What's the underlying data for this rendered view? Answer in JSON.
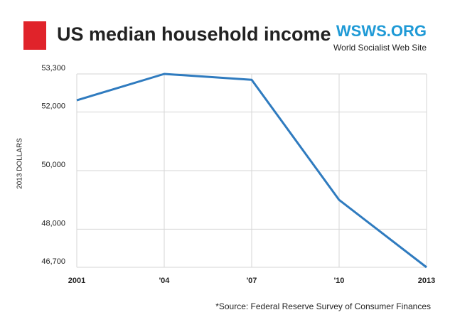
{
  "chart_data": {
    "type": "line",
    "title": "US median household income",
    "brand": "WSWS.ORG",
    "brand_subtitle": "World Socialist Web Site",
    "y_label": "2013 DOLLARS",
    "source": "*Source: Federal Reserve Survey of Consumer Finances",
    "categories": [
      "2001",
      "'04",
      "'07",
      "'10",
      "2013"
    ],
    "series": [
      {
        "name": "Median household income",
        "color": "#2f7bbf",
        "values": [
          52400,
          53300,
          53100,
          49000,
          46700
        ]
      }
    ],
    "ylim": [
      46700,
      53300
    ],
    "yticks": [
      {
        "value": 46700,
        "label": "46,700"
      },
      {
        "value": 48000,
        "label": "48,000"
      },
      {
        "value": 50000,
        "label": "50,000"
      },
      {
        "value": 52000,
        "label": "52,000"
      },
      {
        "value": 53300,
        "label": "53,300"
      }
    ],
    "grid": true
  }
}
